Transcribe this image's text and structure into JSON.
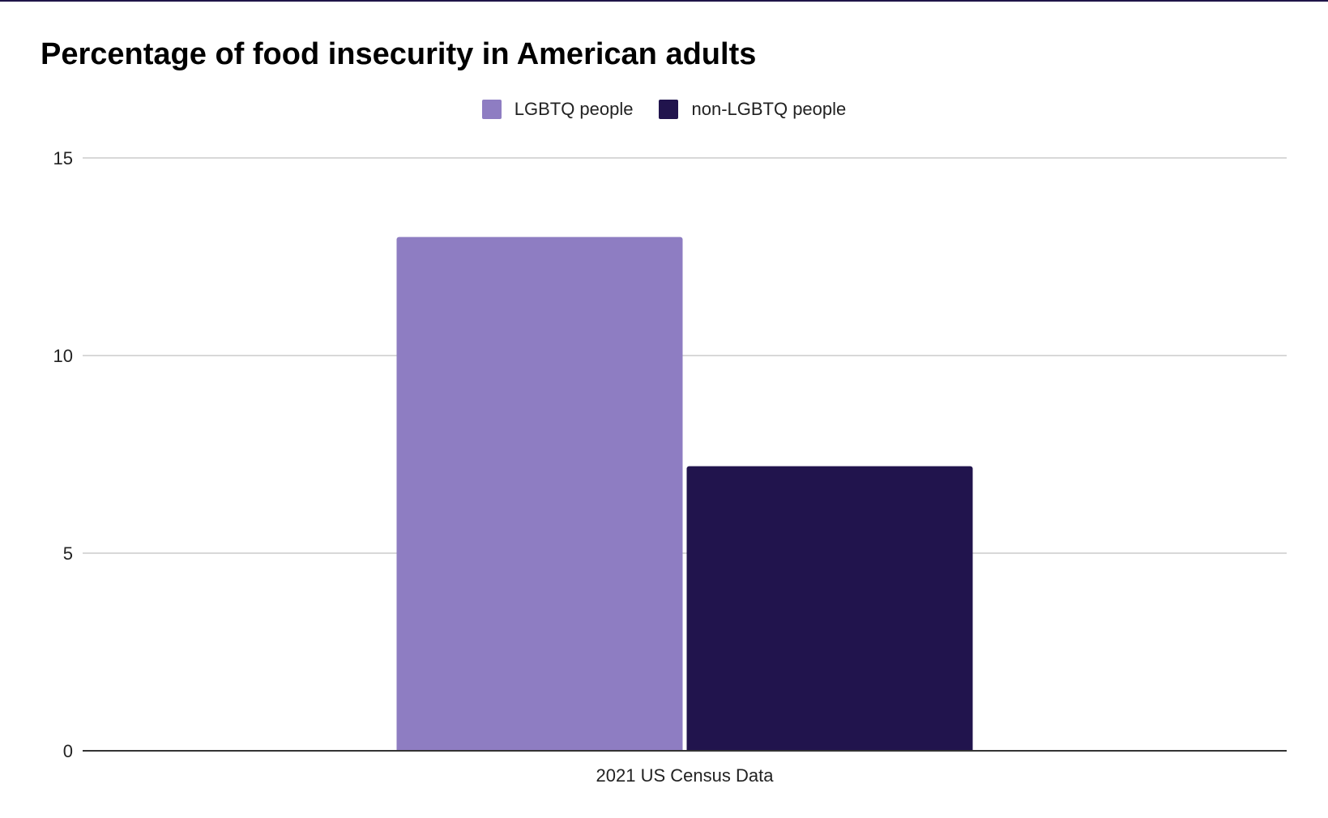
{
  "chart_data": {
    "type": "bar",
    "title": "Percentage of food insecurity in American adults",
    "categories": [
      "2021 US Census Data"
    ],
    "series": [
      {
        "name": "LGBTQ people",
        "values": [
          13
        ],
        "color": "#8e7dc2"
      },
      {
        "name": "non-LGBTQ people",
        "values": [
          7.2
        ],
        "color": "#21144d"
      }
    ],
    "xlabel": "",
    "ylabel": "",
    "ylim": [
      0,
      15
    ],
    "yticks": [
      0,
      5,
      10,
      15
    ],
    "grid": true,
    "legend": "top-center"
  }
}
